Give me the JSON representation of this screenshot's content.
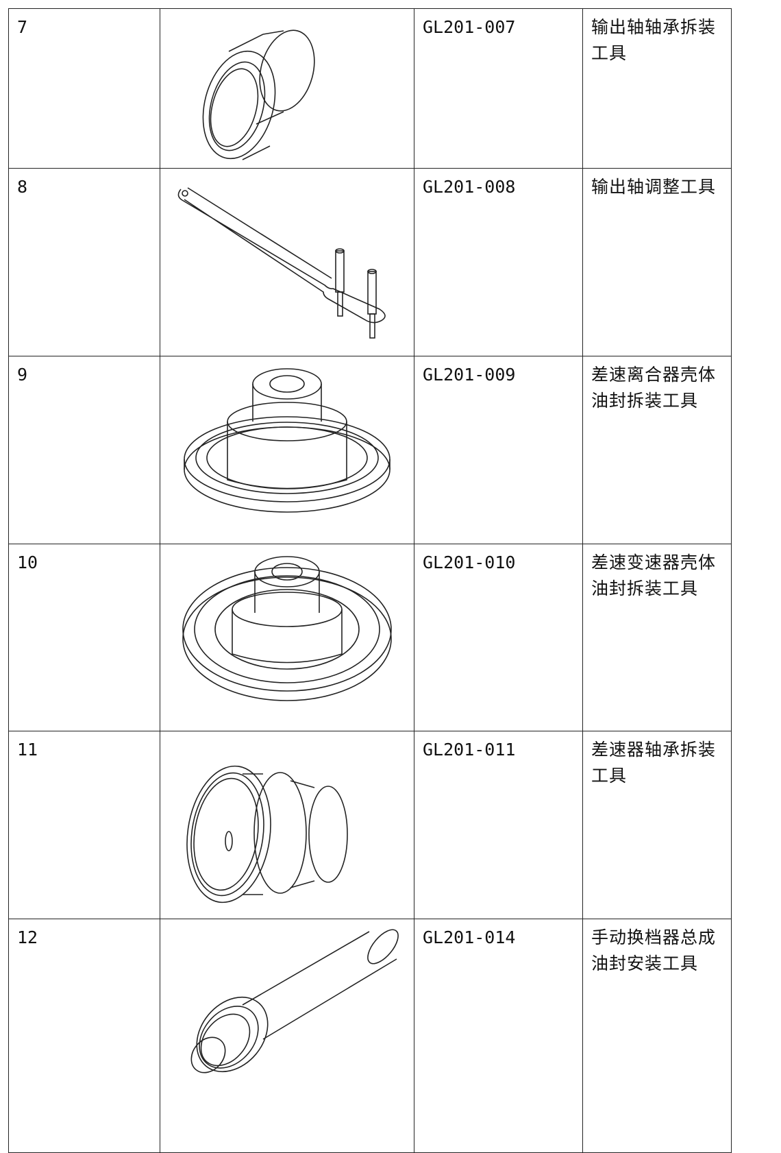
{
  "table": {
    "rows": [
      [
        "7",
        "GL201-007",
        "输出轴轴承拆装工具"
      ],
      [
        "8",
        "GL201-008",
        "输出轴调整工具"
      ],
      [
        "9",
        "GL201-009",
        "差速离合器壳体油封拆装工具"
      ],
      [
        "10",
        "GL201-010",
        "差速变速器壳体油封拆装工具"
      ],
      [
        "11",
        "GL201-011",
        "差速器轴承拆装工具"
      ],
      [
        "12",
        "GL201-014",
        "手动换档器总成油封安装工具"
      ]
    ]
  }
}
